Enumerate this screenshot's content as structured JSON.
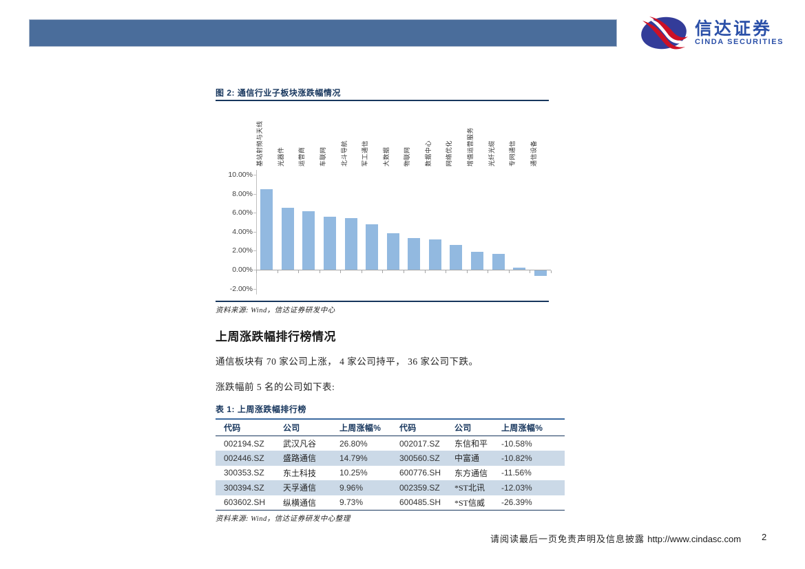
{
  "header": {
    "logo_cn": "信达证券",
    "logo_en": "CINDA SECURITIES"
  },
  "figure": {
    "title": "图  2:  通信行业子板块涨跌幅情况",
    "source": "资料来源: Wind，信达证券研发中心"
  },
  "chart_data": {
    "type": "bar",
    "title": "通信行业子板块涨跌幅情况",
    "categories": [
      "基站射频与天线",
      "光器件",
      "运营商",
      "车联网",
      "北斗导航",
      "军工通信",
      "大数据",
      "物联网",
      "数据中心",
      "网络优化",
      "增值运营服务",
      "光纤光缆",
      "专网通信",
      "通信设备"
    ],
    "values": [
      8.45,
      6.55,
      6.15,
      5.55,
      5.45,
      4.75,
      3.85,
      3.35,
      3.2,
      2.6,
      1.9,
      1.65,
      0.25,
      -0.6
    ],
    "xlabel": "",
    "ylabel": "",
    "ylim": [
      -2,
      10
    ],
    "ytick_labels": [
      "10.00%",
      "8.00%",
      "6.00%",
      "4.00%",
      "2.00%",
      "0.00%",
      "-2.00%"
    ],
    "grid": false,
    "legend": false,
    "bar_color": "#92b9e0"
  },
  "section": {
    "heading": "上周涨跌幅排行榜情况",
    "para1": "通信板块有 70 家公司上涨， 4 家公司持平， 36 家公司下跌。",
    "para2": "涨跌幅前 5 名的公司如下表:"
  },
  "table": {
    "title": "表  1:  上周涨跌幅排行榜",
    "headers": [
      "代码",
      "公司",
      "上周涨幅%",
      "代码",
      "公司",
      "上周涨幅%"
    ],
    "rows": [
      [
        "002194.SZ",
        "武汉凡谷",
        "26.80%",
        "002017.SZ",
        "东信和平",
        "-10.58%"
      ],
      [
        "002446.SZ",
        "盛路通信",
        "14.79%",
        "300560.SZ",
        "中富通",
        "-10.82%"
      ],
      [
        "300353.SZ",
        "东土科技",
        "10.25%",
        "600776.SH",
        "东方通信",
        "-11.56%"
      ],
      [
        "300394.SZ",
        "天孚通信",
        "9.96%",
        "002359.SZ",
        "*ST北讯",
        "-12.03%"
      ],
      [
        "603602.SH",
        "纵横通信",
        "9.73%",
        "600485.SH",
        "*ST信威",
        "-26.39%"
      ]
    ],
    "source": "资料来源: Wind，信达证券研发中心整理"
  },
  "footer": {
    "disclaimer": "请阅读最后一页免责声明及信息披露",
    "url": "http://www.cindasc.com",
    "page_number": "2"
  },
  "colors": {
    "header_bar": "#4a6d9b",
    "title_navy": "#17365d",
    "bar_fill": "#92b9e0",
    "table_alt_row": "#cbd9e7",
    "logo_blue": "#2b50a8",
    "logo_ellipse": "#333c99",
    "logo_red": "#cc1126"
  }
}
